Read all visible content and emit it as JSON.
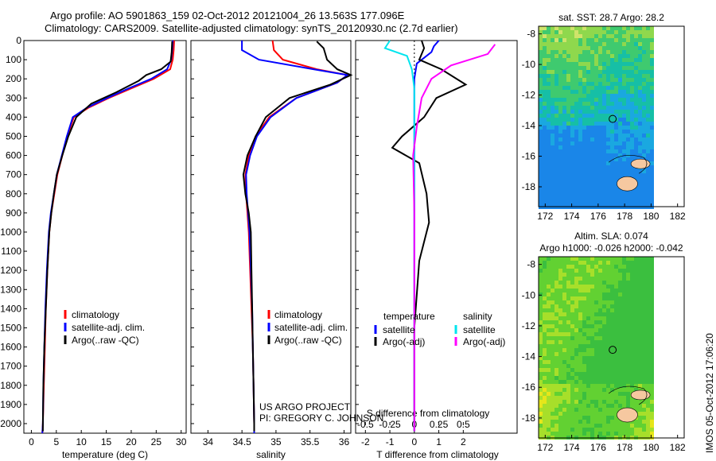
{
  "header": {
    "title_line1": "Argo profile: AO 5901863_159 02-Oct-2012 20121004_26 13.563S 177.096E",
    "title_line2": "Climatology: CARS2009. Satellite-adjusted climatology: synTS_20120930.nc (2.7d earlier)"
  },
  "colors": {
    "climatology": "#ff0000",
    "satellite_adj": "#0000ff",
    "argo": "#000000",
    "satellite_salinity": "#00e5ee",
    "argo_salinity_adj": "#ff00ff"
  },
  "depth_axis": {
    "range": [
      0,
      2050
    ],
    "ticks": [
      0,
      100,
      200,
      300,
      400,
      500,
      600,
      700,
      800,
      900,
      1000,
      1100,
      1200,
      1300,
      1400,
      1500,
      1600,
      1700,
      1800,
      1900,
      2000
    ]
  },
  "credits": {
    "project": "US ARGO PROJECT",
    "pi": "PI: GREGORY C. JOHNSON"
  },
  "imos_stamp": "IMOS 05-Oct-2012 17:06:20",
  "chart_data": [
    {
      "type": "line",
      "name": "temperature-profile",
      "xlabel": "temperature (deg C)",
      "xlim": [
        -1.5,
        31
      ],
      "xticks": [
        0,
        5,
        10,
        15,
        20,
        25,
        30
      ],
      "ylim": [
        0,
        2050
      ],
      "legend": [
        "climatology",
        "satellite-adj. clim.",
        "Argo(..raw -QC)"
      ],
      "legend_placement": "lower-left",
      "series": [
        {
          "name": "climatology",
          "color": "#ff0000",
          "x": [
            28.6,
            28.5,
            28.3,
            27.8,
            24.5,
            20.0,
            15.5,
            11.5,
            8.5,
            7.2,
            6.2,
            5.2,
            4.6,
            4.0,
            3.6,
            3.2,
            2.9,
            2.7,
            2.5,
            2.3,
            2.2
          ],
          "y": [
            0,
            50,
            100,
            150,
            200,
            250,
            300,
            350,
            400,
            500,
            600,
            700,
            800,
            900,
            1000,
            1200,
            1400,
            1600,
            1800,
            2000,
            2050
          ]
        },
        {
          "name": "satellite-adj. clim.",
          "color": "#0000ff",
          "x": [
            28.3,
            28.2,
            28.0,
            27.2,
            24.0,
            19.5,
            15.2,
            11.2,
            8.3,
            7.1,
            6.1,
            5.1,
            4.5,
            3.9,
            3.5,
            3.1,
            2.8,
            2.6,
            2.4,
            2.3,
            2.2
          ],
          "y": [
            0,
            50,
            100,
            150,
            200,
            250,
            300,
            350,
            400,
            500,
            600,
            700,
            800,
            900,
            1000,
            1200,
            1400,
            1600,
            1800,
            2000,
            2050
          ]
        },
        {
          "name": "Argo(..raw -QC)",
          "color": "#000000",
          "x": [
            28.2,
            28.1,
            27.9,
            26.0,
            23.0,
            21.5,
            17.0,
            12.0,
            9.0,
            7.4,
            6.2,
            5.1,
            4.5,
            4.0,
            3.6,
            3.2,
            2.9,
            2.6,
            2.4,
            2.3,
            2.3
          ],
          "y": [
            5,
            60,
            110,
            150,
            180,
            210,
            270,
            330,
            400,
            500,
            600,
            700,
            800,
            900,
            1000,
            1200,
            1400,
            1600,
            1800,
            2000,
            2040
          ]
        }
      ]
    },
    {
      "type": "line",
      "name": "salinity-profile",
      "xlabel": "salinity",
      "xlim": [
        33.75,
        36.1
      ],
      "xticks": [
        34,
        34.5,
        35,
        35.5,
        36
      ],
      "ylim": [
        0,
        2050
      ],
      "legend": [
        "climatology",
        "satellite-adj. clim.",
        "Argo(..raw -QC)"
      ],
      "legend_placement": "lower-right",
      "series": [
        {
          "name": "climatology",
          "color": "#ff0000",
          "x": [
            34.95,
            34.97,
            35.1,
            35.6,
            36.05,
            35.9,
            35.3,
            34.9,
            34.7,
            34.6,
            34.55,
            34.56,
            34.58,
            34.6,
            34.62,
            34.64,
            34.66,
            34.67,
            34.68,
            34.68
          ],
          "y": [
            0,
            50,
            100,
            150,
            180,
            220,
            300,
            400,
            500,
            600,
            700,
            800,
            900,
            1000,
            1200,
            1400,
            1600,
            1800,
            2000,
            2050
          ]
        },
        {
          "name": "satellite-adj. clim.",
          "color": "#0000ff",
          "x": [
            34.5,
            34.5,
            34.75,
            35.55,
            36.05,
            35.9,
            35.3,
            34.92,
            34.72,
            34.62,
            34.56,
            34.57,
            34.59,
            34.61,
            34.63,
            34.65,
            34.66,
            34.67,
            34.68,
            34.68
          ],
          "y": [
            0,
            50,
            100,
            150,
            180,
            220,
            300,
            400,
            500,
            600,
            700,
            800,
            900,
            1000,
            1200,
            1400,
            1600,
            1800,
            2000,
            2050
          ]
        },
        {
          "name": "Argo(..raw -QC)",
          "color": "#000000",
          "x": [
            35.6,
            35.7,
            35.75,
            35.9,
            36.1,
            35.8,
            35.2,
            34.85,
            34.7,
            34.58,
            34.52,
            34.55,
            34.6,
            34.63,
            34.64,
            34.65,
            34.66,
            34.67,
            34.68,
            34.68
          ],
          "y": [
            5,
            40,
            100,
            150,
            180,
            230,
            300,
            400,
            500,
            600,
            700,
            800,
            900,
            1000,
            1200,
            1400,
            1600,
            1800,
            2000,
            2040
          ]
        }
      ]
    },
    {
      "type": "line",
      "name": "difference-from-climatology",
      "xlabel": "T difference from climatology",
      "xlabel2": "S difference from climatology",
      "xlim_T": [
        -2.4,
        4.2
      ],
      "xticks_T": [
        -2,
        -1,
        0,
        1,
        2
      ],
      "xticks_S": [
        -0.5,
        -0.25,
        0,
        0.25,
        0.5
      ],
      "xtick_labels_S": [
        "-0.5",
        "-0.25",
        "0",
        "0.25",
        "0.5"
      ],
      "s_scale_per_T": 4,
      "ylim": [
        0,
        2050
      ],
      "legend_temperature_title": "temperature",
      "legend_salinity_title": "salinity",
      "legend": [
        "satellite",
        "Argo(-adj)",
        "satellite",
        "Argo(-adj)"
      ],
      "series": [
        {
          "name": "satellite",
          "group": "temperature",
          "color": "#0000ff",
          "x": [
            1.0,
            0.8,
            0.7,
            0.1,
            0.0,
            0.0,
            0.0,
            0.0,
            0.0,
            0.0,
            0.0,
            0.0,
            0.0,
            0.0,
            0.0
          ],
          "y": [
            0,
            30,
            60,
            120,
            200,
            300,
            400,
            500,
            600,
            800,
            1000,
            1200,
            1500,
            1800,
            2040
          ]
        },
        {
          "name": "Argo(-adj)",
          "group": "temperature",
          "color": "#000000",
          "x": [
            0.3,
            0.4,
            0.2,
            1.1,
            2.1,
            0.9,
            0.4,
            -0.5,
            -0.9,
            0.2,
            0.5,
            0.6,
            0.2,
            0.0,
            0.0
          ],
          "y": [
            0,
            40,
            100,
            150,
            230,
            300,
            400,
            500,
            560,
            640,
            800,
            950,
            1150,
            1500,
            2040
          ]
        },
        {
          "name": "satellite",
          "group": "salinity",
          "color": "#00e5ee",
          "x": [
            -1.0,
            -1.2,
            -0.3,
            -0.1,
            0.0,
            0.0,
            0.0,
            0.0,
            0.0,
            0.0,
            0.0,
            0.0
          ],
          "y": [
            0,
            40,
            80,
            150,
            250,
            400,
            600,
            800,
            1000,
            1300,
            1700,
            2040
          ]
        },
        {
          "name": "Argo(-adj)",
          "group": "salinity",
          "color": "#ff00ff",
          "x": [
            3.3,
            3.0,
            1.5,
            0.7,
            0.3,
            0.1,
            -0.05,
            0.0,
            0.0,
            0.0
          ],
          "y": [
            20,
            70,
            130,
            200,
            300,
            450,
            600,
            900,
            1400,
            2040
          ]
        }
      ]
    },
    {
      "type": "heatmap",
      "name": "sat-sst-map",
      "title": "sat. SST: 28.7 Argo: 28.2",
      "xticks": [
        172,
        174,
        176,
        178,
        180,
        182
      ],
      "yticks": [
        -8,
        -10,
        -12,
        -14,
        -16,
        -18
      ],
      "xlim": [
        171.5,
        182.5
      ],
      "ylim": [
        -19.3,
        -7.5
      ],
      "marker": {
        "lon": 177.096,
        "lat": -13.563
      }
    },
    {
      "type": "heatmap",
      "name": "altimetry-sla-map",
      "title": "Altim. SLA: 0.074",
      "subtitle": "Argo h1000: -0.026 h2000: -0.042",
      "xticks": [
        172,
        174,
        176,
        178,
        180,
        182
      ],
      "yticks": [
        -8,
        -10,
        -12,
        -14,
        -16,
        -18
      ],
      "xlim": [
        171.5,
        182.5
      ],
      "ylim": [
        -19.3,
        -7.5
      ],
      "marker": {
        "lon": 177.096,
        "lat": -13.563
      }
    }
  ]
}
